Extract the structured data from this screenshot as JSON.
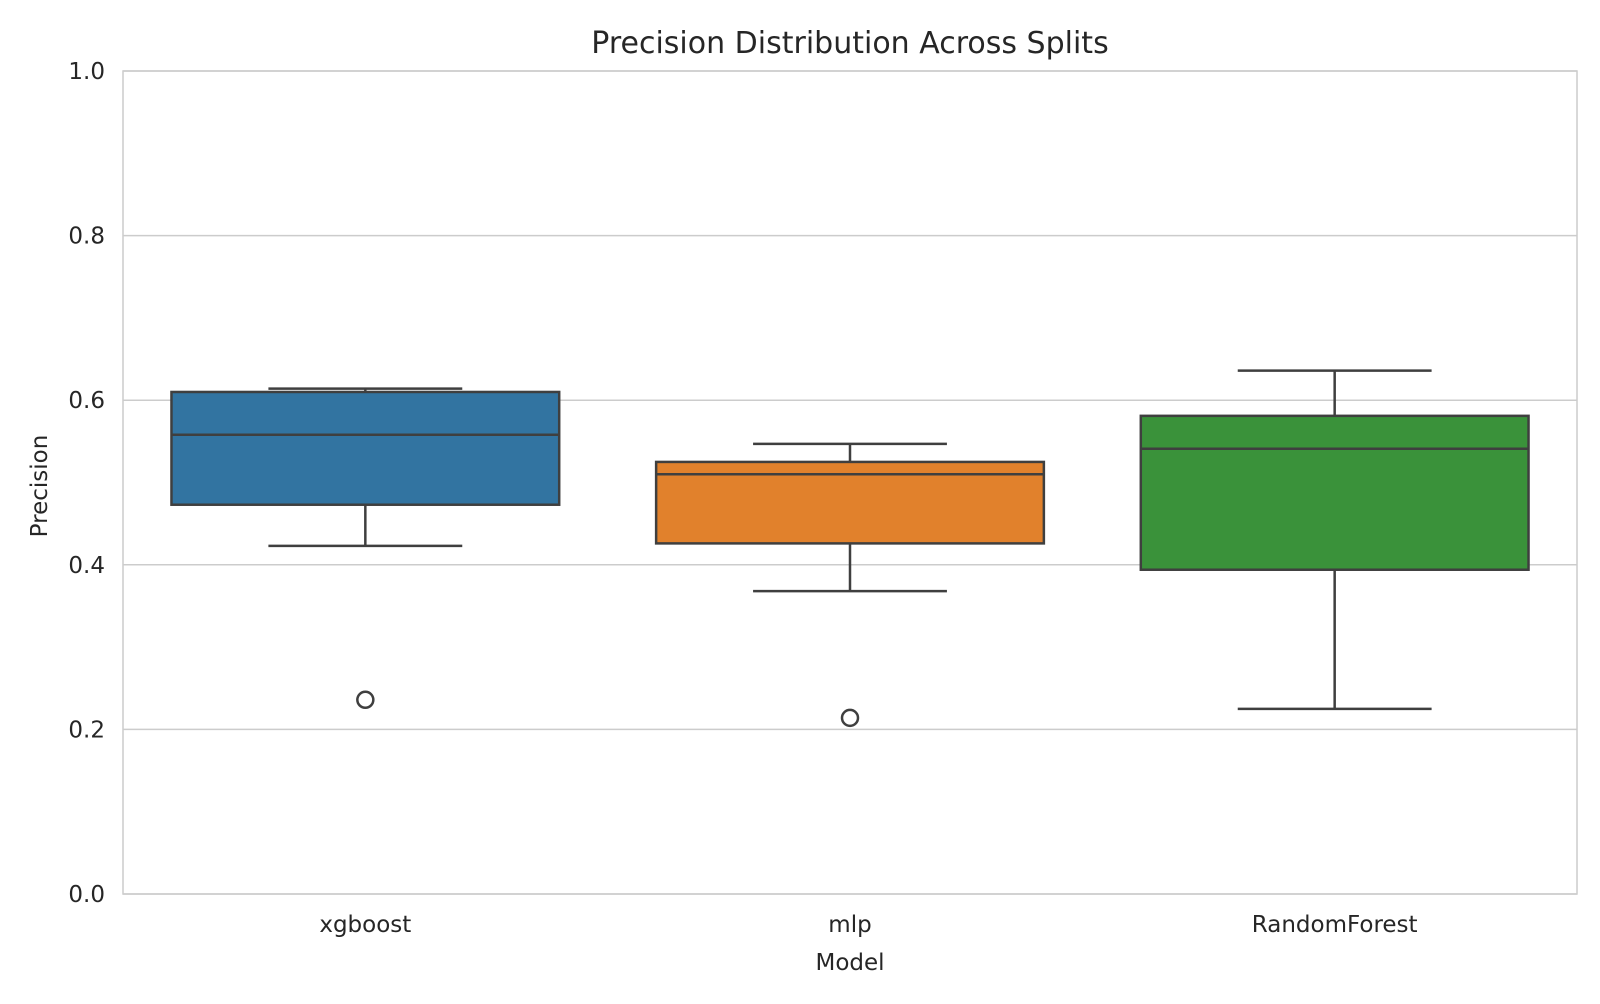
{
  "chart_data": {
    "type": "box",
    "title": "Precision Distribution Across Splits",
    "xlabel": "Model",
    "ylabel": "Precision",
    "ylim": [
      0.0,
      1.0
    ],
    "yticks": [
      "0.0",
      "0.2",
      "0.4",
      "0.6",
      "0.8",
      "1.0"
    ],
    "grid": true,
    "categories": [
      "xgboost",
      "mlp",
      "RandomForest"
    ],
    "boxes": [
      {
        "category": "xgboost",
        "color": "#3274a1",
        "whisker_low": 0.423,
        "q1": 0.473,
        "median": 0.558,
        "q3": 0.61,
        "whisker_high": 0.614,
        "outliers": [
          0.236
        ]
      },
      {
        "category": "mlp",
        "color": "#e1812c",
        "whisker_low": 0.368,
        "q1": 0.426,
        "median": 0.51,
        "q3": 0.525,
        "whisker_high": 0.547,
        "outliers": [
          0.214
        ]
      },
      {
        "category": "RandomForest",
        "color": "#3a923a",
        "whisker_low": 0.225,
        "q1": 0.394,
        "median": 0.541,
        "q3": 0.581,
        "whisker_high": 0.636,
        "outliers": []
      }
    ]
  }
}
